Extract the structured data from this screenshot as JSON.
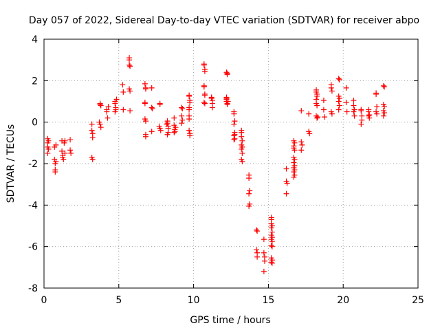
{
  "chart_data": {
    "type": "scatter",
    "title": "Day 057 of 2022, Sidereal Day-to-day VTEC variation (SDTVAR) for receiver abpo",
    "xlabel": "GPS time / hours",
    "ylabel": "SDTVAR / TECUs",
    "xlim": [
      0,
      25
    ],
    "ylim": [
      -8,
      4
    ],
    "grid": true,
    "marker": "plus",
    "colors": {
      "points": "#ff0000",
      "frame": "#000000",
      "grid": "#a0a0a0"
    },
    "x_ticks": [
      {
        "value": 0,
        "label": "0"
      },
      {
        "value": 5,
        "label": "5"
      },
      {
        "value": 10,
        "label": "10"
      },
      {
        "value": 15,
        "label": "15"
      },
      {
        "value": 20,
        "label": "20"
      },
      {
        "value": 25,
        "label": "25"
      }
    ],
    "y_ticks": [
      {
        "value": 4,
        "label": "4"
      },
      {
        "value": 2,
        "label": "2"
      },
      {
        "value": 0,
        "label": "0"
      },
      {
        "value": -2,
        "label": "-2"
      },
      {
        "value": -4,
        "label": "-4"
      },
      {
        "value": -6,
        "label": "-6"
      },
      {
        "value": -8,
        "label": "-8"
      }
    ],
    "series": [
      {
        "name": "SDTVAR",
        "points": [
          [
            0.25,
            -0.8
          ],
          [
            0.25,
            -1.0
          ],
          [
            0.25,
            -1.2
          ],
          [
            0.25,
            -1.5
          ],
          [
            0.3,
            -0.9
          ],
          [
            0.3,
            -1.3
          ],
          [
            0.7,
            -1.2
          ],
          [
            0.7,
            -1.8
          ],
          [
            0.75,
            -2.0
          ],
          [
            0.75,
            -2.3
          ],
          [
            0.75,
            -2.4
          ],
          [
            0.8,
            -1.9
          ],
          [
            0.8,
            -1.1
          ],
          [
            1.2,
            -0.9
          ],
          [
            1.2,
            -1.4
          ],
          [
            1.25,
            -1.6
          ],
          [
            1.25,
            -1.7
          ],
          [
            1.3,
            -1.8
          ],
          [
            1.35,
            -1.0
          ],
          [
            1.4,
            -0.9
          ],
          [
            1.4,
            -1.5
          ],
          [
            1.75,
            -0.85
          ],
          [
            1.75,
            -1.35
          ],
          [
            1.8,
            -1.5
          ],
          [
            3.2,
            -0.1
          ],
          [
            3.2,
            -0.4
          ],
          [
            3.25,
            -0.55
          ],
          [
            3.25,
            -0.75
          ],
          [
            3.2,
            -1.7
          ],
          [
            3.25,
            -1.8
          ],
          [
            3.75,
            0.9
          ],
          [
            3.75,
            0.85
          ],
          [
            3.7,
            0.0
          ],
          [
            3.75,
            -0.1
          ],
          [
            3.8,
            -0.25
          ],
          [
            3.8,
            0.8
          ],
          [
            4.2,
            0.6
          ],
          [
            4.2,
            0.5
          ],
          [
            4.25,
            0.2
          ],
          [
            4.3,
            0.75
          ],
          [
            4.75,
            1.0
          ],
          [
            4.75,
            0.9
          ],
          [
            4.8,
            0.7
          ],
          [
            4.8,
            0.6
          ],
          [
            4.85,
            1.1
          ],
          [
            4.75,
            0.5
          ],
          [
            5.25,
            1.8
          ],
          [
            5.3,
            1.45
          ],
          [
            5.3,
            0.6
          ],
          [
            5.7,
            3.1
          ],
          [
            5.7,
            3.0
          ],
          [
            5.7,
            2.75
          ],
          [
            5.75,
            2.7
          ],
          [
            5.7,
            1.6
          ],
          [
            5.75,
            1.5
          ],
          [
            5.75,
            0.55
          ],
          [
            6.75,
            1.85
          ],
          [
            6.8,
            1.65
          ],
          [
            6.8,
            1.6
          ],
          [
            6.75,
            0.95
          ],
          [
            6.75,
            0.9
          ],
          [
            6.75,
            0.15
          ],
          [
            6.8,
            0.05
          ],
          [
            6.8,
            -0.6
          ],
          [
            6.8,
            -0.7
          ],
          [
            7.2,
            1.65
          ],
          [
            7.2,
            0.7
          ],
          [
            7.25,
            0.65
          ],
          [
            7.2,
            -0.45
          ],
          [
            7.75,
            0.9
          ],
          [
            7.75,
            0.85
          ],
          [
            7.7,
            -0.2
          ],
          [
            7.75,
            -0.3
          ],
          [
            7.8,
            -0.4
          ],
          [
            8.25,
            0.05
          ],
          [
            8.25,
            -0.05
          ],
          [
            8.3,
            -0.2
          ],
          [
            8.3,
            -0.3
          ],
          [
            8.3,
            -0.5
          ],
          [
            8.25,
            -0.6
          ],
          [
            8.2,
            -0.1
          ],
          [
            8.7,
            0.2
          ],
          [
            8.7,
            -0.15
          ],
          [
            8.75,
            -0.35
          ],
          [
            8.75,
            -0.45
          ],
          [
            8.7,
            -0.5
          ],
          [
            8.8,
            -0.25
          ],
          [
            9.2,
            0.7
          ],
          [
            9.25,
            0.65
          ],
          [
            9.2,
            0.3
          ],
          [
            9.25,
            0.1
          ],
          [
            9.2,
            -0.05
          ],
          [
            9.7,
            1.3
          ],
          [
            9.7,
            1.25
          ],
          [
            9.75,
            1.05
          ],
          [
            9.75,
            0.95
          ],
          [
            9.7,
            0.7
          ],
          [
            9.7,
            0.6
          ],
          [
            9.7,
            0.3
          ],
          [
            9.7,
            0.15
          ],
          [
            9.7,
            -0.4
          ],
          [
            9.75,
            -0.55
          ],
          [
            9.75,
            -0.65
          ],
          [
            10.7,
            2.8
          ],
          [
            10.7,
            2.75
          ],
          [
            10.75,
            2.55
          ],
          [
            10.75,
            2.45
          ],
          [
            10.7,
            1.75
          ],
          [
            10.7,
            1.7
          ],
          [
            10.75,
            1.35
          ],
          [
            10.75,
            1.3
          ],
          [
            10.7,
            0.95
          ],
          [
            10.75,
            0.9
          ],
          [
            11.2,
            1.2
          ],
          [
            11.2,
            1.15
          ],
          [
            11.25,
            1.05
          ],
          [
            11.25,
            0.9
          ],
          [
            11.25,
            0.7
          ],
          [
            12.2,
            2.4
          ],
          [
            12.25,
            2.35
          ],
          [
            12.25,
            2.3
          ],
          [
            12.2,
            1.2
          ],
          [
            12.2,
            1.1
          ],
          [
            12.2,
            1.0
          ],
          [
            12.25,
            0.9
          ],
          [
            12.25,
            0.85
          ],
          [
            12.2,
            1.15
          ],
          [
            12.3,
            1.0
          ],
          [
            12.7,
            0.5
          ],
          [
            12.7,
            0.4
          ],
          [
            12.75,
            0.05
          ],
          [
            12.7,
            -0.1
          ],
          [
            12.75,
            -0.5
          ],
          [
            12.7,
            -0.65
          ],
          [
            12.75,
            -0.8
          ],
          [
            12.7,
            -0.85
          ],
          [
            12.75,
            -0.6
          ],
          [
            13.2,
            -0.4
          ],
          [
            13.2,
            -0.5
          ],
          [
            13.2,
            -0.7
          ],
          [
            13.25,
            -0.9
          ],
          [
            13.2,
            -1.1
          ],
          [
            13.25,
            -1.2
          ],
          [
            13.2,
            -1.3
          ],
          [
            13.25,
            -1.5
          ],
          [
            13.2,
            -1.8
          ],
          [
            13.25,
            -1.9
          ],
          [
            13.7,
            -2.55
          ],
          [
            13.7,
            -2.7
          ],
          [
            13.75,
            -3.3
          ],
          [
            13.7,
            -3.45
          ],
          [
            13.75,
            -3.95
          ],
          [
            13.7,
            -4.05
          ],
          [
            14.2,
            -5.2
          ],
          [
            14.25,
            -5.25
          ],
          [
            14.2,
            -6.15
          ],
          [
            14.25,
            -6.3
          ],
          [
            14.25,
            -6.5
          ],
          [
            14.7,
            -5.65
          ],
          [
            14.7,
            -6.3
          ],
          [
            14.75,
            -6.5
          ],
          [
            14.75,
            -6.7
          ],
          [
            14.7,
            -7.2
          ],
          [
            15.2,
            -4.6
          ],
          [
            15.2,
            -4.7
          ],
          [
            15.2,
            -4.9
          ],
          [
            15.25,
            -5.0
          ],
          [
            15.2,
            -5.1
          ],
          [
            15.25,
            -5.3
          ],
          [
            15.2,
            -5.45
          ],
          [
            15.25,
            -5.55
          ],
          [
            15.2,
            -5.65
          ],
          [
            15.25,
            -5.75
          ],
          [
            15.2,
            -5.95
          ],
          [
            15.25,
            -6.0
          ],
          [
            15.2,
            -6.55
          ],
          [
            15.25,
            -6.65
          ],
          [
            15.2,
            -6.75
          ],
          [
            15.25,
            -6.8
          ],
          [
            16.2,
            -2.25
          ],
          [
            16.2,
            -2.85
          ],
          [
            16.25,
            -2.95
          ],
          [
            16.2,
            -3.45
          ],
          [
            16.7,
            -0.9
          ],
          [
            16.75,
            -1.0
          ],
          [
            16.7,
            -1.15
          ],
          [
            16.7,
            -1.25
          ],
          [
            16.75,
            -1.35
          ],
          [
            16.7,
            -1.7
          ],
          [
            16.75,
            -1.8
          ],
          [
            16.7,
            -1.95
          ],
          [
            16.75,
            -2.1
          ],
          [
            16.7,
            -2.2
          ],
          [
            16.75,
            -2.3
          ],
          [
            16.7,
            -2.4
          ],
          [
            16.75,
            -2.55
          ],
          [
            16.7,
            -2.65
          ],
          [
            17.2,
            0.55
          ],
          [
            17.2,
            -0.95
          ],
          [
            17.25,
            -1.1
          ],
          [
            17.2,
            -1.35
          ],
          [
            17.7,
            0.4
          ],
          [
            17.7,
            -0.45
          ],
          [
            17.75,
            -0.55
          ],
          [
            18.2,
            1.55
          ],
          [
            18.2,
            1.45
          ],
          [
            18.25,
            1.35
          ],
          [
            18.25,
            1.25
          ],
          [
            18.2,
            1.1
          ],
          [
            18.2,
            0.9
          ],
          [
            18.25,
            0.8
          ],
          [
            18.2,
            0.3
          ],
          [
            18.25,
            0.2
          ],
          [
            18.3,
            0.25
          ],
          [
            18.7,
            1.05
          ],
          [
            18.7,
            0.6
          ],
          [
            18.75,
            0.25
          ],
          [
            19.2,
            1.8
          ],
          [
            19.2,
            1.65
          ],
          [
            19.25,
            1.5
          ],
          [
            19.2,
            0.5
          ],
          [
            19.25,
            0.4
          ],
          [
            19.7,
            2.1
          ],
          [
            19.75,
            2.05
          ],
          [
            19.7,
            1.25
          ],
          [
            19.75,
            1.15
          ],
          [
            19.7,
            1.0
          ],
          [
            19.75,
            0.8
          ],
          [
            19.7,
            0.6
          ],
          [
            20.2,
            1.65
          ],
          [
            20.2,
            0.95
          ],
          [
            20.25,
            0.5
          ],
          [
            20.7,
            1.05
          ],
          [
            20.7,
            0.8
          ],
          [
            20.75,
            0.6
          ],
          [
            20.7,
            0.5
          ],
          [
            20.75,
            0.3
          ],
          [
            21.2,
            0.6
          ],
          [
            21.2,
            0.55
          ],
          [
            21.25,
            0.3
          ],
          [
            21.25,
            0.1
          ],
          [
            21.2,
            -0.1
          ],
          [
            21.7,
            0.6
          ],
          [
            21.7,
            0.5
          ],
          [
            21.75,
            0.35
          ],
          [
            21.75,
            0.2
          ],
          [
            21.7,
            0.3
          ],
          [
            22.2,
            1.4
          ],
          [
            22.2,
            1.35
          ],
          [
            22.25,
            0.75
          ],
          [
            22.2,
            0.5
          ],
          [
            22.25,
            0.4
          ],
          [
            22.7,
            1.75
          ],
          [
            22.75,
            1.7
          ],
          [
            22.7,
            0.85
          ],
          [
            22.75,
            0.75
          ],
          [
            22.7,
            0.55
          ],
          [
            22.75,
            0.45
          ],
          [
            22.7,
            0.3
          ]
        ]
      }
    ]
  }
}
